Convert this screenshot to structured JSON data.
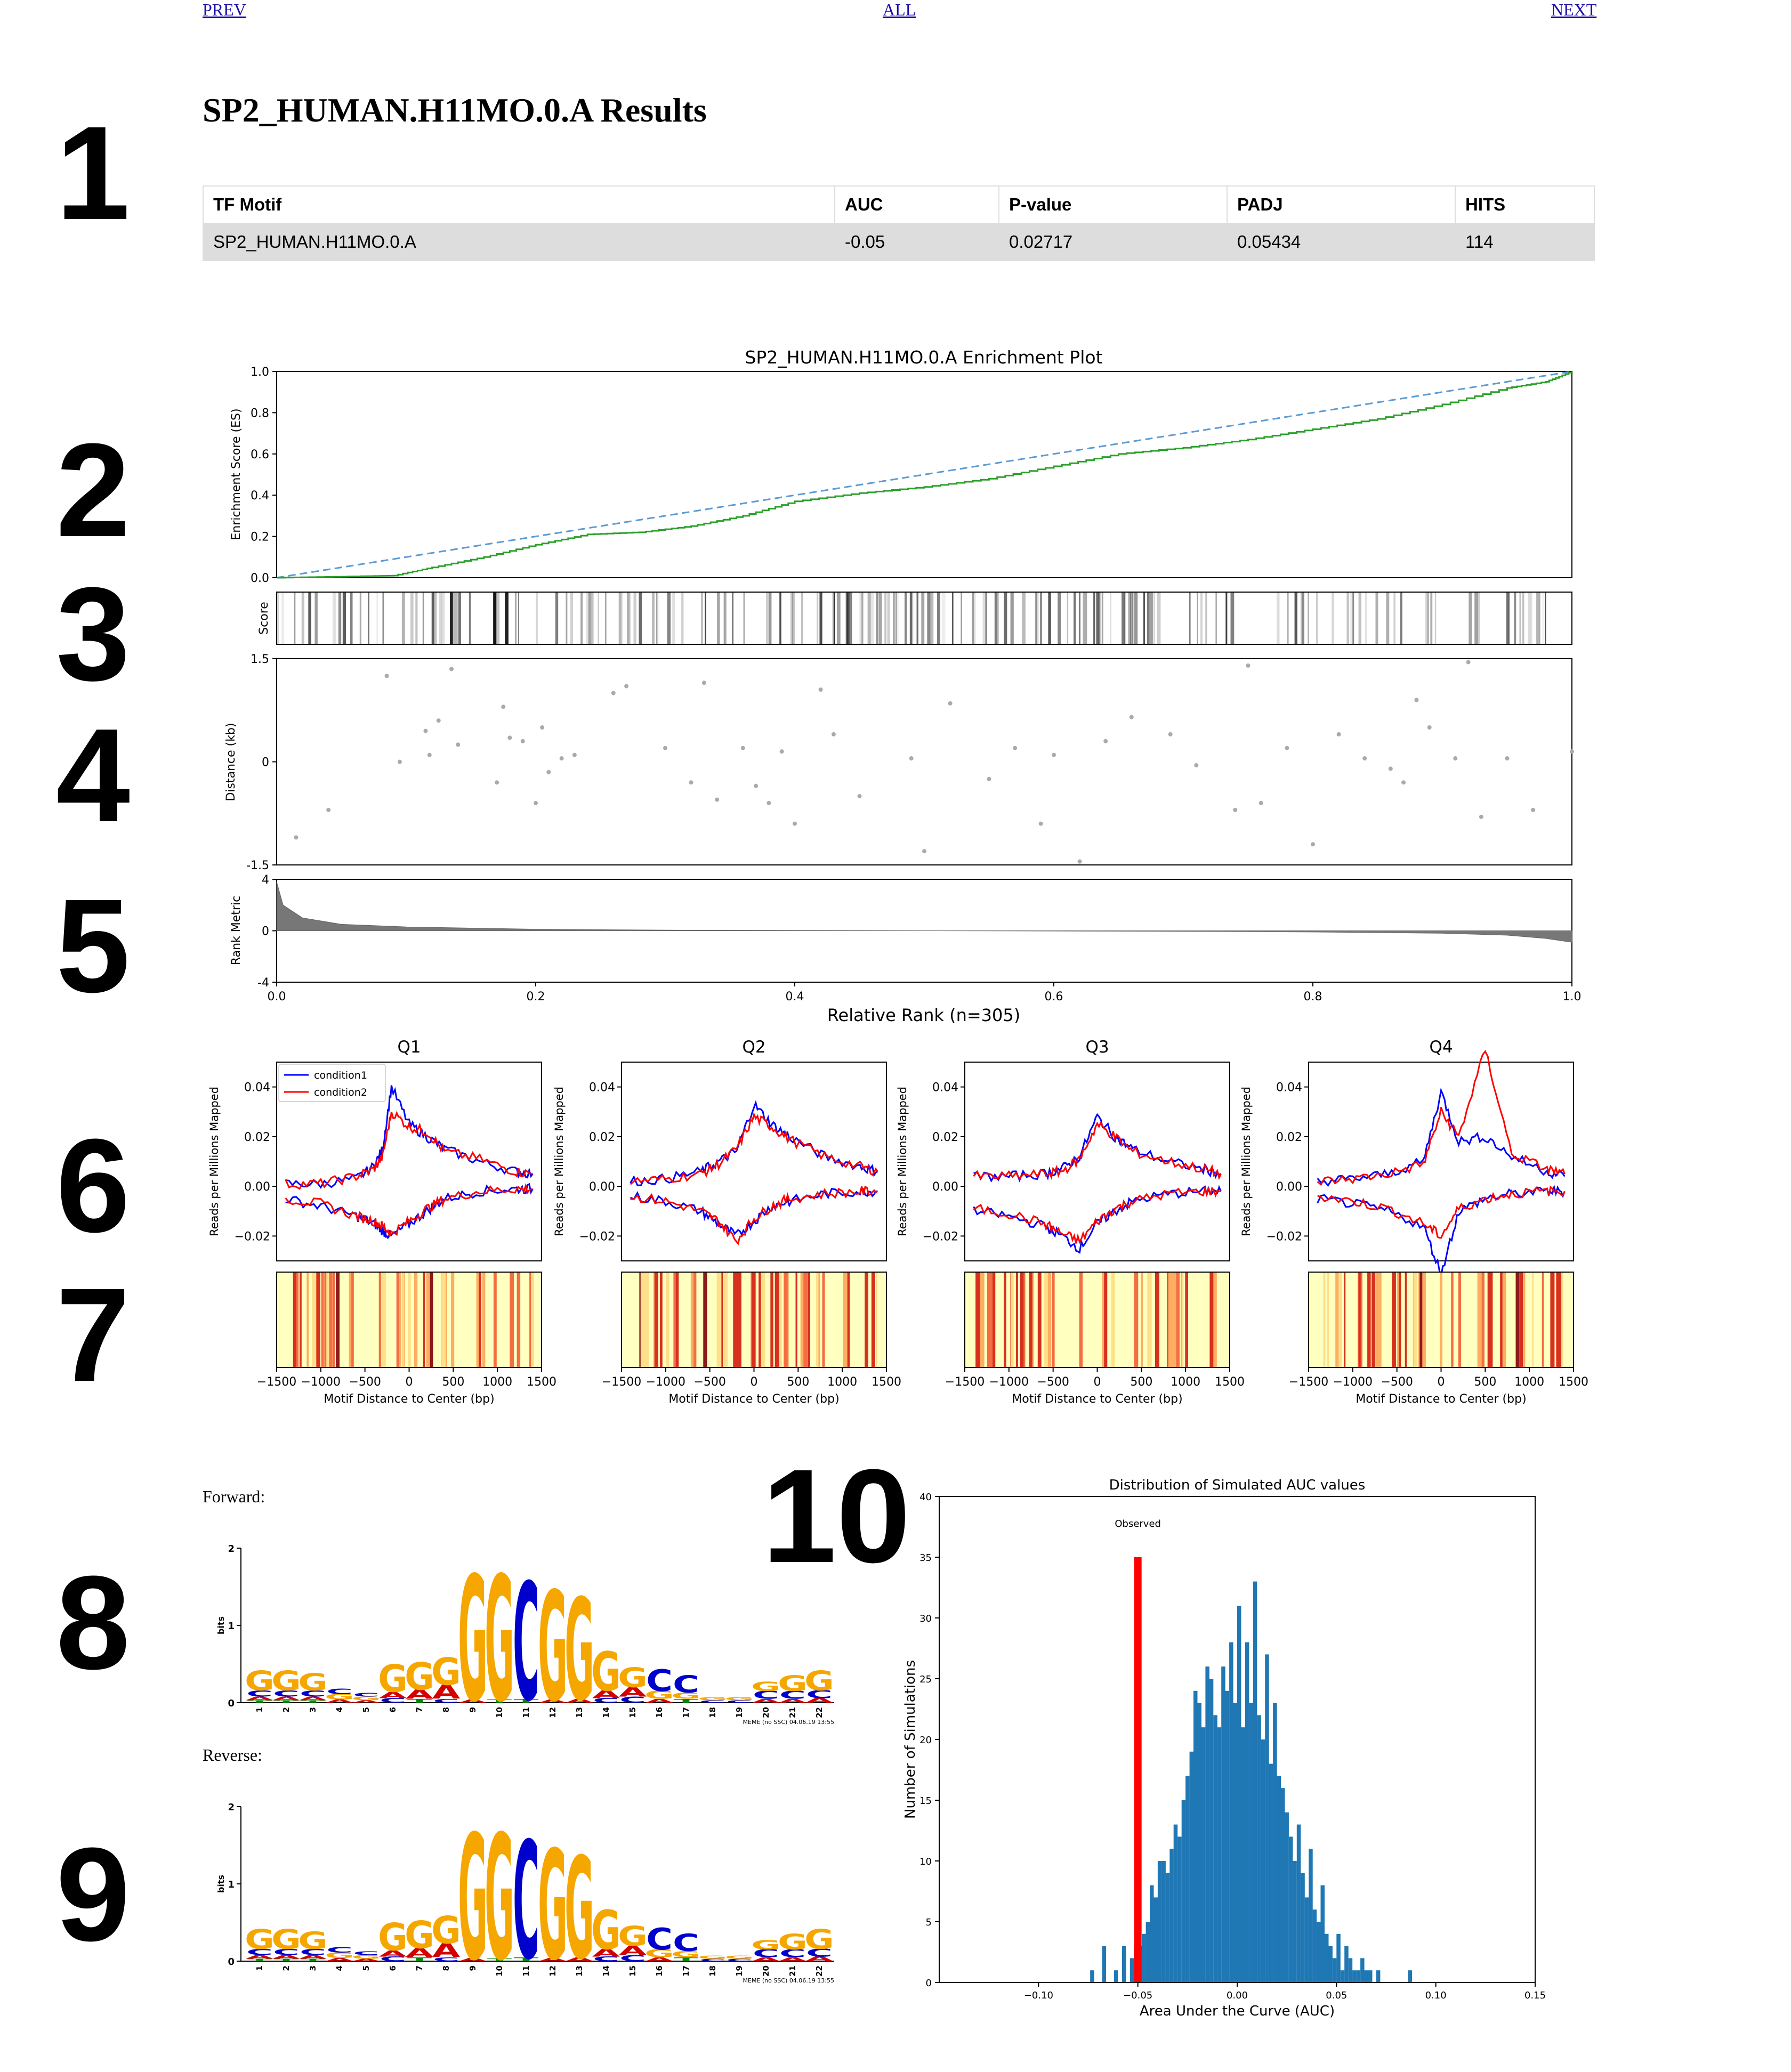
{
  "nav": {
    "prev": "PREV",
    "all": "ALL",
    "next": "NEXT"
  },
  "section_numbers": [
    "1",
    "2",
    "3",
    "4",
    "5",
    "6",
    "7",
    "8",
    "9",
    "10"
  ],
  "page_title": "SP2_HUMAN.H11MO.0.A Results",
  "results_table": {
    "headers": [
      "TF Motif",
      "AUC",
      "P-value",
      "PADJ",
      "HITS"
    ],
    "rows": [
      [
        "SP2_HUMAN.H11MO.0.A",
        "-0.05",
        "0.02717",
        "0.05434",
        "114"
      ]
    ]
  },
  "enrichment_plot": {
    "title": "SP2_HUMAN.H11MO.0.A Enrichment Plot",
    "es_ylabel": "Enrichment Score (ES)",
    "score_ylabel": "Score",
    "distance_ylabel": "Distance (kb)",
    "rank_ylabel": "Rank Metric",
    "xlabel": "Relative Rank (n=305)",
    "es_yticks": [
      "0.0",
      "0.2",
      "0.4",
      "0.6",
      "0.8",
      "1.0"
    ],
    "distance_yticks": [
      "-1.5",
      "0",
      "1.5"
    ],
    "rank_yticks": [
      "-4",
      "0",
      "4"
    ],
    "xticks": [
      "0.0",
      "0.2",
      "0.4",
      "0.6",
      "0.8",
      "1.0"
    ]
  },
  "quartile_plots": {
    "titles": [
      "Q1",
      "Q2",
      "Q3",
      "Q4"
    ],
    "ylabel": "Reads per Millions Mapped",
    "yticks": [
      "0.04",
      "0.02",
      "0.00",
      "−0.02"
    ],
    "legend": [
      "condition1",
      "condition2"
    ],
    "xticks": [
      "−1500",
      "−1000",
      "−500",
      "0",
      "500",
      "1000",
      "1500"
    ],
    "xlabel": "Motif Distance to Center (bp)",
    "colors": {
      "condition1": "#0000ff",
      "condition2": "#ff0000"
    }
  },
  "motif_logos": {
    "forward_label": "Forward:",
    "reverse_label": "Reverse:",
    "ylabel": "bits",
    "yticks": [
      "2",
      "1",
      "0"
    ],
    "positions": [
      "1",
      "2",
      "3",
      "4",
      "5",
      "6",
      "7",
      "8",
      "9",
      "10",
      "11",
      "12",
      "13",
      "14",
      "15",
      "16",
      "17",
      "18",
      "19",
      "20",
      "21",
      "22"
    ],
    "footer": "MEME (no SSC) 04.06.19 13:55"
  },
  "chart_data": [
    {
      "type": "line",
      "title": "SP2_HUMAN.H11MO.0.A Enrichment Plot",
      "xlabel": "Relative Rank (n=305)",
      "ylabel": "Enrichment Score (ES)",
      "xlim": [
        0,
        1
      ],
      "ylim": [
        0,
        1
      ],
      "series": [
        {
          "x": [
            0.0,
            0.05,
            0.09,
            0.12,
            0.16,
            0.2,
            0.24,
            0.28,
            0.32,
            0.36,
            0.4,
            0.45,
            0.5,
            0.55,
            0.6,
            0.65,
            0.7,
            0.75,
            0.8,
            0.85,
            0.9,
            0.95,
            0.98,
            1.0
          ],
          "y": [
            0.0,
            0.005,
            0.01,
            0.05,
            0.1,
            0.16,
            0.21,
            0.22,
            0.25,
            0.3,
            0.37,
            0.41,
            0.44,
            0.48,
            0.54,
            0.6,
            0.63,
            0.67,
            0.72,
            0.77,
            0.84,
            0.92,
            0.95,
            1.0
          ]
        },
        {
          "x": [
            0.0,
            1.0
          ],
          "y": [
            0.0,
            1.0
          ]
        }
      ],
      "colors": [
        "#2ca02c",
        "#5b9bd5"
      ],
      "grid": false
    },
    {
      "type": "scatter",
      "ylabel": "Distance (kb)",
      "ylim": [
        -1.5,
        1.5
      ],
      "x": [
        0.015,
        0.04,
        0.085,
        0.095,
        0.115,
        0.118,
        0.125,
        0.135,
        0.14,
        0.17,
        0.175,
        0.18,
        0.19,
        0.2,
        0.205,
        0.21,
        0.22,
        0.23,
        0.26,
        0.27,
        0.3,
        0.32,
        0.33,
        0.34,
        0.36,
        0.37,
        0.38,
        0.39,
        0.4,
        0.42,
        0.43,
        0.45,
        0.49,
        0.5,
        0.52,
        0.55,
        0.57,
        0.59,
        0.6,
        0.62,
        0.64,
        0.66,
        0.69,
        0.71,
        0.74,
        0.75,
        0.76,
        0.78,
        0.8,
        0.82,
        0.84,
        0.86,
        0.87,
        0.88,
        0.89,
        0.91,
        0.92,
        0.93,
        0.95,
        0.97,
        1.0
      ],
      "y": [
        -1.1,
        -0.7,
        1.25,
        0.0,
        0.45,
        0.1,
        0.6,
        1.35,
        0.25,
        -0.3,
        0.8,
        0.35,
        0.3,
        -0.6,
        0.5,
        -0.15,
        0.05,
        0.1,
        1.0,
        1.1,
        0.2,
        -0.3,
        1.15,
        -0.55,
        0.2,
        -0.35,
        -0.6,
        0.15,
        -0.9,
        1.05,
        0.4,
        -0.5,
        0.05,
        -1.3,
        0.85,
        -0.25,
        0.2,
        -0.9,
        0.1,
        -1.45,
        0.3,
        0.65,
        0.4,
        -0.05,
        -0.7,
        1.4,
        -0.6,
        0.2,
        -1.2,
        0.4,
        0.05,
        -0.1,
        -0.3,
        0.9,
        0.5,
        0.05,
        1.45,
        -0.8,
        0.05,
        -0.7,
        0.15
      ],
      "grid": false
    },
    {
      "type": "area",
      "ylabel": "Rank Metric",
      "ylim": [
        -4,
        4
      ],
      "x": [
        0.0,
        0.005,
        0.02,
        0.05,
        0.1,
        0.2,
        0.3,
        0.5,
        0.7,
        0.8,
        0.9,
        0.95,
        0.98,
        1.0
      ],
      "y": [
        3.8,
        2.0,
        1.0,
        0.5,
        0.3,
        0.12,
        0.05,
        0.0,
        -0.05,
        -0.1,
        -0.2,
        -0.35,
        -0.6,
        -0.9
      ],
      "grid": false
    },
    {
      "type": "line",
      "title": "Q1",
      "xlabel": "Motif Distance to Center (bp)",
      "ylabel": "Reads per Millions Mapped",
      "xlim": [
        -1500,
        1500
      ],
      "ylim": [
        -0.03,
        0.05
      ],
      "x": [
        -1400,
        -1000,
        -600,
        -400,
        -300,
        -200,
        0,
        200,
        400,
        800,
        1200,
        1400
      ],
      "series": [
        {
          "name": "condition1",
          "values": [
            0.001,
            0.001,
            0.003,
            0.008,
            0.015,
            0.04,
            0.025,
            0.02,
            0.015,
            0.01,
            0.006,
            0.005
          ]
        },
        {
          "name": "condition2",
          "values": [
            0.001,
            0.001,
            0.004,
            0.007,
            0.012,
            0.03,
            0.024,
            0.022,
            0.014,
            0.011,
            0.006,
            0.005
          ]
        },
        {
          "name": "condition1",
          "values": [
            -0.005,
            -0.008,
            -0.012,
            -0.015,
            -0.018,
            -0.02,
            -0.015,
            -0.01,
            -0.005,
            -0.002,
            -0.001,
            -0.001
          ]
        },
        {
          "name": "condition2",
          "values": [
            -0.005,
            -0.007,
            -0.012,
            -0.014,
            -0.016,
            -0.019,
            -0.014,
            -0.009,
            -0.005,
            -0.002,
            -0.001,
            -0.001
          ]
        }
      ]
    },
    {
      "type": "line",
      "title": "Q2",
      "xlabel": "Motif Distance to Center (bp)",
      "ylabel": "Reads per Millions Mapped",
      "xlim": [
        -1500,
        1500
      ],
      "ylim": [
        -0.03,
        0.05
      ],
      "x": [
        -1400,
        -1000,
        -600,
        -400,
        -200,
        0,
        200,
        400,
        800,
        1200,
        1400
      ],
      "series": [
        {
          "name": "condition1",
          "values": [
            0.002,
            0.003,
            0.006,
            0.01,
            0.014,
            0.033,
            0.025,
            0.02,
            0.012,
            0.008,
            0.006
          ]
        },
        {
          "name": "condition2",
          "values": [
            0.002,
            0.003,
            0.005,
            0.009,
            0.015,
            0.028,
            0.024,
            0.019,
            0.012,
            0.008,
            0.006
          ]
        },
        {
          "name": "condition1",
          "values": [
            -0.004,
            -0.006,
            -0.01,
            -0.015,
            -0.02,
            -0.014,
            -0.008,
            -0.006,
            -0.003,
            -0.002,
            -0.002
          ]
        },
        {
          "name": "condition2",
          "values": [
            -0.004,
            -0.006,
            -0.01,
            -0.014,
            -0.022,
            -0.013,
            -0.008,
            -0.005,
            -0.003,
            -0.002,
            -0.002
          ]
        }
      ]
    },
    {
      "type": "line",
      "title": "Q3",
      "xlabel": "Motif Distance to Center (bp)",
      "ylabel": "Reads per Millions Mapped",
      "xlim": [
        -1500,
        1500
      ],
      "ylim": [
        -0.03,
        0.05
      ],
      "x": [
        -1400,
        -1000,
        -600,
        -400,
        -200,
        0,
        200,
        400,
        800,
        1200,
        1400
      ],
      "series": [
        {
          "name": "condition1",
          "values": [
            0.004,
            0.004,
            0.005,
            0.007,
            0.012,
            0.028,
            0.02,
            0.015,
            0.01,
            0.007,
            0.005
          ]
        },
        {
          "name": "condition2",
          "values": [
            0.004,
            0.004,
            0.005,
            0.006,
            0.011,
            0.025,
            0.02,
            0.014,
            0.01,
            0.007,
            0.005
          ]
        },
        {
          "name": "condition1",
          "values": [
            -0.01,
            -0.012,
            -0.016,
            -0.02,
            -0.025,
            -0.015,
            -0.01,
            -0.006,
            -0.003,
            -0.002,
            -0.002
          ]
        },
        {
          "name": "condition2",
          "values": [
            -0.009,
            -0.011,
            -0.015,
            -0.019,
            -0.022,
            -0.014,
            -0.009,
            -0.006,
            -0.003,
            -0.002,
            -0.002
          ]
        }
      ]
    },
    {
      "type": "line",
      "title": "Q4",
      "xlabel": "Motif Distance to Center (bp)",
      "ylabel": "Reads per Millions Mapped",
      "xlim": [
        -1500,
        1500
      ],
      "ylim": [
        -0.03,
        0.05
      ],
      "x": [
        -1400,
        -1000,
        -600,
        -200,
        0,
        200,
        500,
        800,
        1200,
        1400
      ],
      "series": [
        {
          "name": "condition1",
          "values": [
            0.002,
            0.003,
            0.005,
            0.01,
            0.038,
            0.018,
            0.02,
            0.012,
            0.006,
            0.004
          ]
        },
        {
          "name": "condition2",
          "values": [
            0.002,
            0.003,
            0.005,
            0.009,
            0.03,
            0.02,
            0.055,
            0.013,
            0.007,
            0.005
          ]
        },
        {
          "name": "condition1",
          "values": [
            -0.005,
            -0.007,
            -0.01,
            -0.016,
            -0.035,
            -0.01,
            -0.005,
            -0.003,
            -0.002,
            -0.002
          ]
        },
        {
          "name": "condition2",
          "values": [
            -0.004,
            -0.006,
            -0.009,
            -0.015,
            -0.02,
            -0.009,
            -0.005,
            -0.003,
            -0.002,
            -0.002
          ]
        }
      ]
    },
    {
      "type": "bar",
      "title": "Distribution of Simulated AUC values",
      "xlabel": "Area Under the Curve (AUC)",
      "ylabel": "Number of Simulations",
      "xlim": [
        -0.15,
        0.15
      ],
      "ylim": [
        0,
        40
      ],
      "xticks": [
        "−0.10",
        "−0.05",
        "0.00",
        "0.05",
        "0.10",
        "0.15"
      ],
      "yticks": [
        "0",
        "5",
        "10",
        "15",
        "20",
        "25",
        "30",
        "35",
        "40"
      ],
      "observed_label": "Observed",
      "observed_value": -0.05,
      "bin_width": 0.002,
      "bin_centers": [
        -0.073,
        -0.067,
        -0.061,
        -0.057,
        -0.053,
        -0.051,
        -0.049,
        -0.047,
        -0.045,
        -0.043,
        -0.041,
        -0.039,
        -0.037,
        -0.035,
        -0.033,
        -0.031,
        -0.029,
        -0.027,
        -0.025,
        -0.023,
        -0.021,
        -0.019,
        -0.017,
        -0.015,
        -0.013,
        -0.011,
        -0.009,
        -0.007,
        -0.005,
        -0.003,
        -0.001,
        0.001,
        0.003,
        0.005,
        0.007,
        0.009,
        0.011,
        0.013,
        0.015,
        0.017,
        0.019,
        0.021,
        0.023,
        0.025,
        0.027,
        0.029,
        0.031,
        0.033,
        0.035,
        0.037,
        0.039,
        0.041,
        0.043,
        0.045,
        0.047,
        0.049,
        0.051,
        0.053,
        0.055,
        0.057,
        0.059,
        0.061,
        0.063,
        0.065,
        0.067,
        0.069,
        0.071,
        0.087
      ],
      "counts": [
        1,
        3,
        1,
        3,
        2,
        3,
        3,
        4,
        5,
        8,
        7,
        10,
        10,
        9,
        11,
        13,
        12,
        15,
        17,
        19,
        24,
        23,
        21,
        26,
        25,
        22,
        21,
        26,
        24,
        28,
        23,
        31,
        21,
        28,
        23,
        33,
        22,
        20,
        27,
        18,
        23,
        17,
        16,
        14,
        12,
        10,
        13,
        9,
        7,
        11,
        6,
        5,
        8,
        4,
        3,
        2,
        4,
        1,
        3,
        2,
        1,
        1,
        2,
        1,
        1,
        0,
        1,
        1
      ],
      "colors": {
        "bars": "#1f77b4",
        "observed": "#ff0000"
      }
    }
  ]
}
